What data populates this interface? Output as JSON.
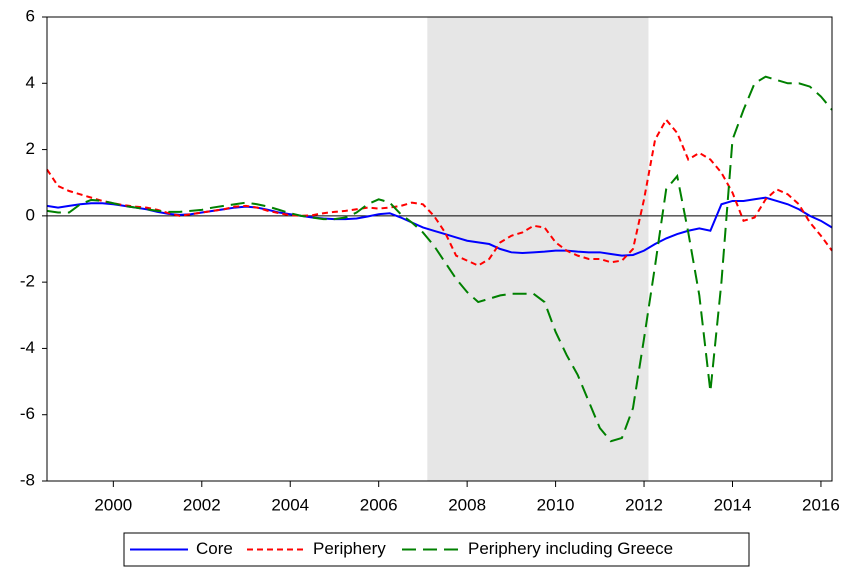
{
  "chart_data": {
    "type": "line",
    "x": [
      1998.5,
      1998.75,
      1999,
      1999.25,
      1999.5,
      1999.75,
      2000,
      2000.25,
      2000.5,
      2000.75,
      2001,
      2001.25,
      2001.5,
      2001.75,
      2002,
      2002.25,
      2002.5,
      2002.75,
      2003,
      2003.25,
      2003.5,
      2003.75,
      2004,
      2004.25,
      2004.5,
      2004.75,
      2005,
      2005.25,
      2005.5,
      2005.75,
      2006,
      2006.25,
      2006.5,
      2006.75,
      2007,
      2007.25,
      2007.5,
      2007.75,
      2008,
      2008.25,
      2008.5,
      2008.75,
      2009,
      2009.25,
      2009.5,
      2009.75,
      2010,
      2010.25,
      2010.5,
      2010.75,
      2011,
      2011.25,
      2011.5,
      2011.75,
      2012,
      2012.25,
      2012.5,
      2012.75,
      2013,
      2013.25,
      2013.5,
      2013.75,
      2014,
      2014.25,
      2014.5,
      2014.75,
      2015,
      2015.25,
      2015.5,
      2015.75,
      2016,
      2016.25
    ],
    "series": [
      {
        "name": "Core",
        "color": "#0000ff",
        "dash": "none",
        "values": [
          0.3,
          0.25,
          0.3,
          0.35,
          0.38,
          0.38,
          0.35,
          0.3,
          0.25,
          0.2,
          0.12,
          0.06,
          0.03,
          0.05,
          0.1,
          0.15,
          0.2,
          0.25,
          0.28,
          0.25,
          0.18,
          0.1,
          0.05,
          0.0,
          -0.05,
          -0.08,
          -0.1,
          -0.1,
          -0.08,
          -0.02,
          0.05,
          0.08,
          -0.05,
          -0.2,
          -0.35,
          -0.45,
          -0.55,
          -0.65,
          -0.75,
          -0.8,
          -0.85,
          -1.0,
          -1.1,
          -1.12,
          -1.1,
          -1.08,
          -1.05,
          -1.05,
          -1.08,
          -1.1,
          -1.1,
          -1.15,
          -1.2,
          -1.18,
          -1.05,
          -0.85,
          -0.68,
          -0.55,
          -0.45,
          -0.38,
          -0.45,
          0.35,
          0.45,
          0.45,
          0.5,
          0.55,
          0.45,
          0.35,
          0.2,
          0.0,
          -0.15,
          -0.35
        ]
      },
      {
        "name": "Periphery",
        "color": "#ff0000",
        "dash": "6,4",
        "values": [
          1.4,
          0.9,
          0.75,
          0.65,
          0.55,
          0.45,
          0.38,
          0.32,
          0.28,
          0.25,
          0.18,
          0.08,
          0.0,
          0.05,
          0.1,
          0.15,
          0.2,
          0.28,
          0.3,
          0.25,
          0.15,
          0.08,
          0.02,
          0.0,
          0.02,
          0.08,
          0.12,
          0.15,
          0.2,
          0.25,
          0.22,
          0.25,
          0.3,
          0.4,
          0.35,
          0.0,
          -0.5,
          -1.2,
          -1.35,
          -1.5,
          -1.3,
          -0.8,
          -0.6,
          -0.5,
          -0.3,
          -0.35,
          -0.8,
          -1.05,
          -1.2,
          -1.3,
          -1.3,
          -1.4,
          -1.35,
          -1.0,
          0.5,
          2.3,
          2.9,
          2.5,
          1.7,
          1.9,
          1.7,
          1.3,
          0.7,
          -0.15,
          -0.05,
          0.5,
          0.8,
          0.65,
          0.35,
          -0.2,
          -0.6,
          -1.05
        ]
      },
      {
        "name": "Periphery including Greece",
        "color": "#008000",
        "dash": "14,7",
        "values": [
          0.15,
          0.1,
          0.1,
          0.35,
          0.48,
          0.45,
          0.38,
          0.3,
          0.25,
          0.2,
          0.15,
          0.12,
          0.12,
          0.15,
          0.18,
          0.25,
          0.3,
          0.35,
          0.4,
          0.35,
          0.28,
          0.18,
          0.08,
          0.0,
          -0.05,
          -0.1,
          -0.1,
          -0.05,
          0.1,
          0.35,
          0.5,
          0.4,
          0.05,
          -0.2,
          -0.5,
          -0.9,
          -1.4,
          -1.9,
          -2.3,
          -2.6,
          -2.5,
          -2.4,
          -2.35,
          -2.35,
          -2.35,
          -2.6,
          -3.5,
          -4.2,
          -4.8,
          -5.6,
          -6.4,
          -6.8,
          -6.7,
          -5.8,
          -3.7,
          -1.5,
          0.8,
          1.2,
          -0.5,
          -2.4,
          -5.3,
          -2.0,
          2.3,
          3.2,
          4.0,
          4.2,
          4.1,
          4.0,
          4.0,
          3.9,
          3.6,
          3.2
        ]
      }
    ],
    "xlim": [
      1998.5,
      2016.25
    ],
    "xticks": [
      2000,
      2002,
      2004,
      2006,
      2008,
      2010,
      2012,
      2014,
      2016
    ],
    "ylim": [
      -8,
      6
    ],
    "yticks": [
      -8,
      -6,
      -4,
      -2,
      0,
      2,
      4,
      6
    ],
    "shade": [
      2007.1,
      2012.1
    ],
    "shade_color": "#e6e6e6",
    "hline": 0,
    "grid": false,
    "legend": "bottom"
  }
}
